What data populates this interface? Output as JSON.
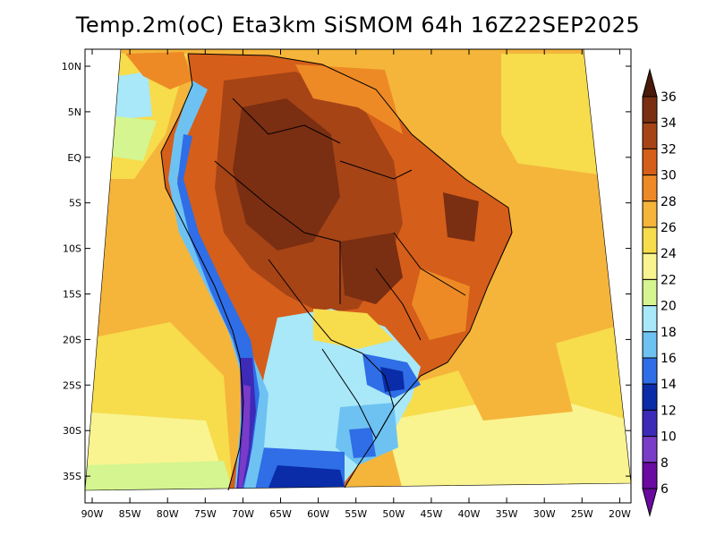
{
  "title": "Temp.2m(oC) Eta3km SiSMOM 64h 16Z22SEP2025",
  "chart_data": {
    "type": "heatmap",
    "title": "Temp.2m(oC) Eta3km SiSMOM 64h 16Z22SEP2025",
    "xlim": [
      -91,
      -19.5
    ],
    "ylim": [
      -38.5,
      11.5
    ],
    "lon_ticks": [
      "90W",
      "85W",
      "80W",
      "75W",
      "70W",
      "65W",
      "60W",
      "55W",
      "50W",
      "45W",
      "40W",
      "35W",
      "30W",
      "25W",
      "20W"
    ],
    "lat_ticks": [
      "10N",
      "5N",
      "EQ",
      "5S",
      "10S",
      "15S",
      "20S",
      "25S",
      "30S",
      "35S"
    ],
    "colorbar": {
      "labels": [
        "36",
        "34",
        "32",
        "30",
        "28",
        "26",
        "24",
        "22",
        "20",
        "18",
        "16",
        "14",
        "12",
        "10",
        "8",
        "6"
      ],
      "colors": [
        "#4a1a0a",
        "#7a2e12",
        "#a64416",
        "#d55e1a",
        "#ee8a25",
        "#f5b53a",
        "#f7dc4c",
        "#f9f490",
        "#d4f590",
        "#a8e8f8",
        "#6ec2f2",
        "#2f6ee6",
        "#0a2ca8",
        "#3d2bb8",
        "#7a3cc8",
        "#6a0aa0"
      ]
    },
    "regions": [
      {
        "name": "ocean-pacific",
        "value": "26",
        "color": "#f5b53a"
      },
      {
        "name": "ocean-atlantic",
        "value": "26",
        "color": "#f5b53a"
      },
      {
        "name": "amazon",
        "value": "32",
        "color": "#a64416"
      },
      {
        "name": "amazon-hot",
        "value": "34",
        "color": "#7a2e12"
      },
      {
        "name": "northeast-brazil",
        "value": "30",
        "color": "#d55e1a"
      },
      {
        "name": "south-brazil",
        "value": "18",
        "color": "#a8e8f8"
      },
      {
        "name": "andes",
        "value": "10",
        "color": "#3d2bb8"
      },
      {
        "name": "patagonia",
        "value": "14",
        "color": "#2f6ee6"
      }
    ]
  }
}
